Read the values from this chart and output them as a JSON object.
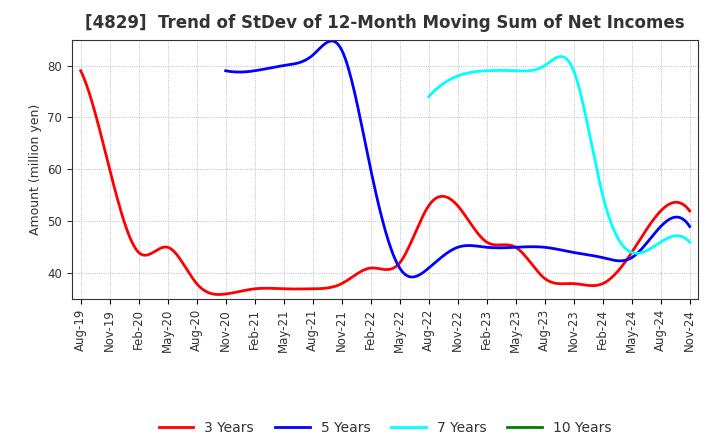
{
  "title": "[4829]  Trend of StDev of 12-Month Moving Sum of Net Incomes",
  "ylabel": "Amount (million yen)",
  "x_labels": [
    "Aug-19",
    "Nov-19",
    "Feb-20",
    "May-20",
    "Aug-20",
    "Nov-20",
    "Feb-21",
    "May-21",
    "Aug-21",
    "Nov-21",
    "Feb-22",
    "May-22",
    "Aug-22",
    "Nov-22",
    "Feb-23",
    "May-23",
    "Aug-23",
    "Nov-23",
    "Feb-24",
    "May-24",
    "Aug-24",
    "Nov-24"
  ],
  "series": {
    "3 Years": {
      "color": "#FF0000",
      "data": [
        79,
        60,
        44,
        45,
        38,
        36,
        37,
        37,
        37,
        38,
        41,
        42,
        53,
        53,
        46,
        45,
        39,
        38,
        38,
        44,
        52,
        52
      ]
    },
    "5 Years": {
      "color": "#0000FF",
      "data": [
        null,
        null,
        null,
        null,
        null,
        79,
        79,
        80,
        82,
        83,
        60,
        41,
        41,
        45,
        45,
        45,
        45,
        44,
        43,
        43,
        49,
        49
      ]
    },
    "7 Years": {
      "color": "#00FFFF",
      "data": [
        null,
        null,
        null,
        null,
        null,
        null,
        null,
        null,
        null,
        null,
        null,
        null,
        74,
        78,
        79,
        79,
        80,
        79,
        55,
        44,
        46,
        46
      ]
    },
    "10 Years": {
      "color": "#008000",
      "data": [
        null,
        null,
        null,
        null,
        null,
        null,
        null,
        null,
        null,
        null,
        null,
        null,
        null,
        null,
        null,
        null,
        null,
        null,
        null,
        null,
        null,
        null
      ]
    }
  },
  "ylim": [
    35,
    85
  ],
  "yticks": [
    40,
    50,
    60,
    70,
    80
  ],
  "background_color": "#FFFFFF",
  "grid_color": "#AAAAAA",
  "title_fontsize": 12,
  "legend_fontsize": 10,
  "axis_fontsize": 8.5
}
